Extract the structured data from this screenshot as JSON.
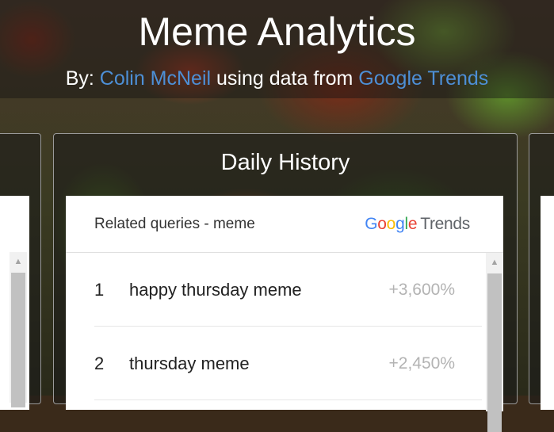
{
  "header": {
    "title": "Meme Analytics",
    "by_prefix": "By: ",
    "author": "Colin McNeil",
    "middle": " using data from ",
    "source": "Google Trends"
  },
  "panels": {
    "center": {
      "heading": "Daily History",
      "widget": {
        "title": "Related queries - meme",
        "brand_google": "Google",
        "brand_trends": "Trends",
        "rows": [
          {
            "rank": "1",
            "query": "happy thursday meme",
            "value": "+3,600%"
          },
          {
            "rank": "2",
            "query": "thursday meme",
            "value": "+2,450%"
          }
        ]
      }
    }
  },
  "colors": {
    "link": "#4d8fd6",
    "value_text": "#b3b3b3"
  },
  "icons": {
    "scroll_up": "arrow-up-icon"
  }
}
